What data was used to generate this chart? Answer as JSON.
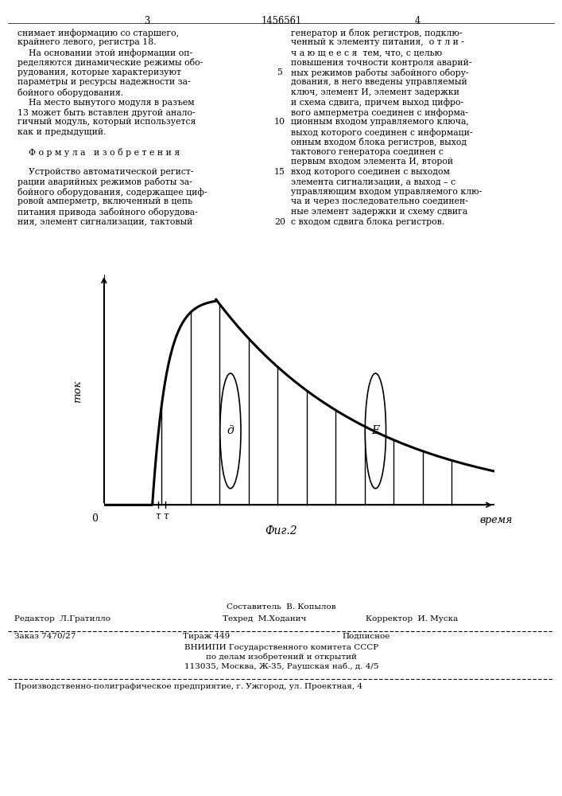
{
  "background_color": "#ffffff",
  "text_color": "#000000",
  "page_num_left": "3",
  "page_title": "1456561",
  "page_num_right": "4",
  "left_col": [
    "снимает информацию со старшего,",
    "крайнего левого, регистра 18.",
    "    На основании этой информации оп-",
    "ределяются динамические режимы обо-",
    "рудования, которые характеризуют",
    "параметры и ресурсы надежности за-",
    "бойного оборудования.",
    "    На место вынутого модуля в разъем",
    "13 может быть вставлен другой анало-",
    "гичный модуль, который используется",
    "как и предыдущий.",
    "",
    "    Ф о р м у л а   и з о б р е т е н и я",
    "",
    "    Устройство автоматической регист-",
    "рации аварийных режимов работы за-",
    "бойного оборудования, содержащее циф-",
    "ровой амперметр, включенный в цепь",
    "питания привода забойного оборудова-",
    "ния, элемент сигнализации, тактовый"
  ],
  "right_col": [
    "генератор и блок регистров, подклю-",
    "ченный к элементу питания,  о т л и -",
    "ч а ю щ е е с я  тем, что, с целью",
    "повышения точности контроля аварий-",
    "ных режимов работы забойного обору-",
    "дования, в него введены управляемый",
    "ключ, элемент И, элемент задержки",
    "и схема сдвига, причем выход цифро-",
    "вого амперметра соединен с информа-",
    "ционным входом управляемого ключа,",
    "выход которого соединен с информаци-",
    "онным входом блока регистров, выход",
    "тактового генератора соединен с",
    "первым входом элемента И, второй",
    "вход которого соединен с выходом",
    "элемента сигнализации, а выход – с",
    "управляющим входом управляемого клю-",
    "ча и через последовательно соединен-",
    "ные элемент задержки и схему сдвига",
    "с входом сдвига блока регистров."
  ],
  "line_numbers": {
    "5": 4,
    "10": 9,
    "15": 14,
    "20": 19
  },
  "ylabel": "ток",
  "xlabel": "время",
  "fig_caption": "Фиг.2",
  "label_d": "д",
  "label_e": "Е",
  "footer_sestavitel": "Составитель  В. Копылов",
  "footer_editor": "Редактор  Л.Гратилло",
  "footer_tehred": "Техред  М.Ходанич",
  "footer_korrektor": "Корректор  И. Муска",
  "footer_zakaz": "Заказ 7470/27",
  "footer_tirazh": "Тираж 449",
  "footer_podpisnoe": "Подписное",
  "footer_vnipi": "ВНИИПИ Государственного комитета СССР",
  "footer_po_delam": "по делам изобретений и открытий",
  "footer_address": "113035, Москва, Ж-35, Раушская наб., д. 4/5",
  "footer_prod": "Производственно-полиграфическое предприятие, г. Ужгород, ул. Проектная, 4"
}
